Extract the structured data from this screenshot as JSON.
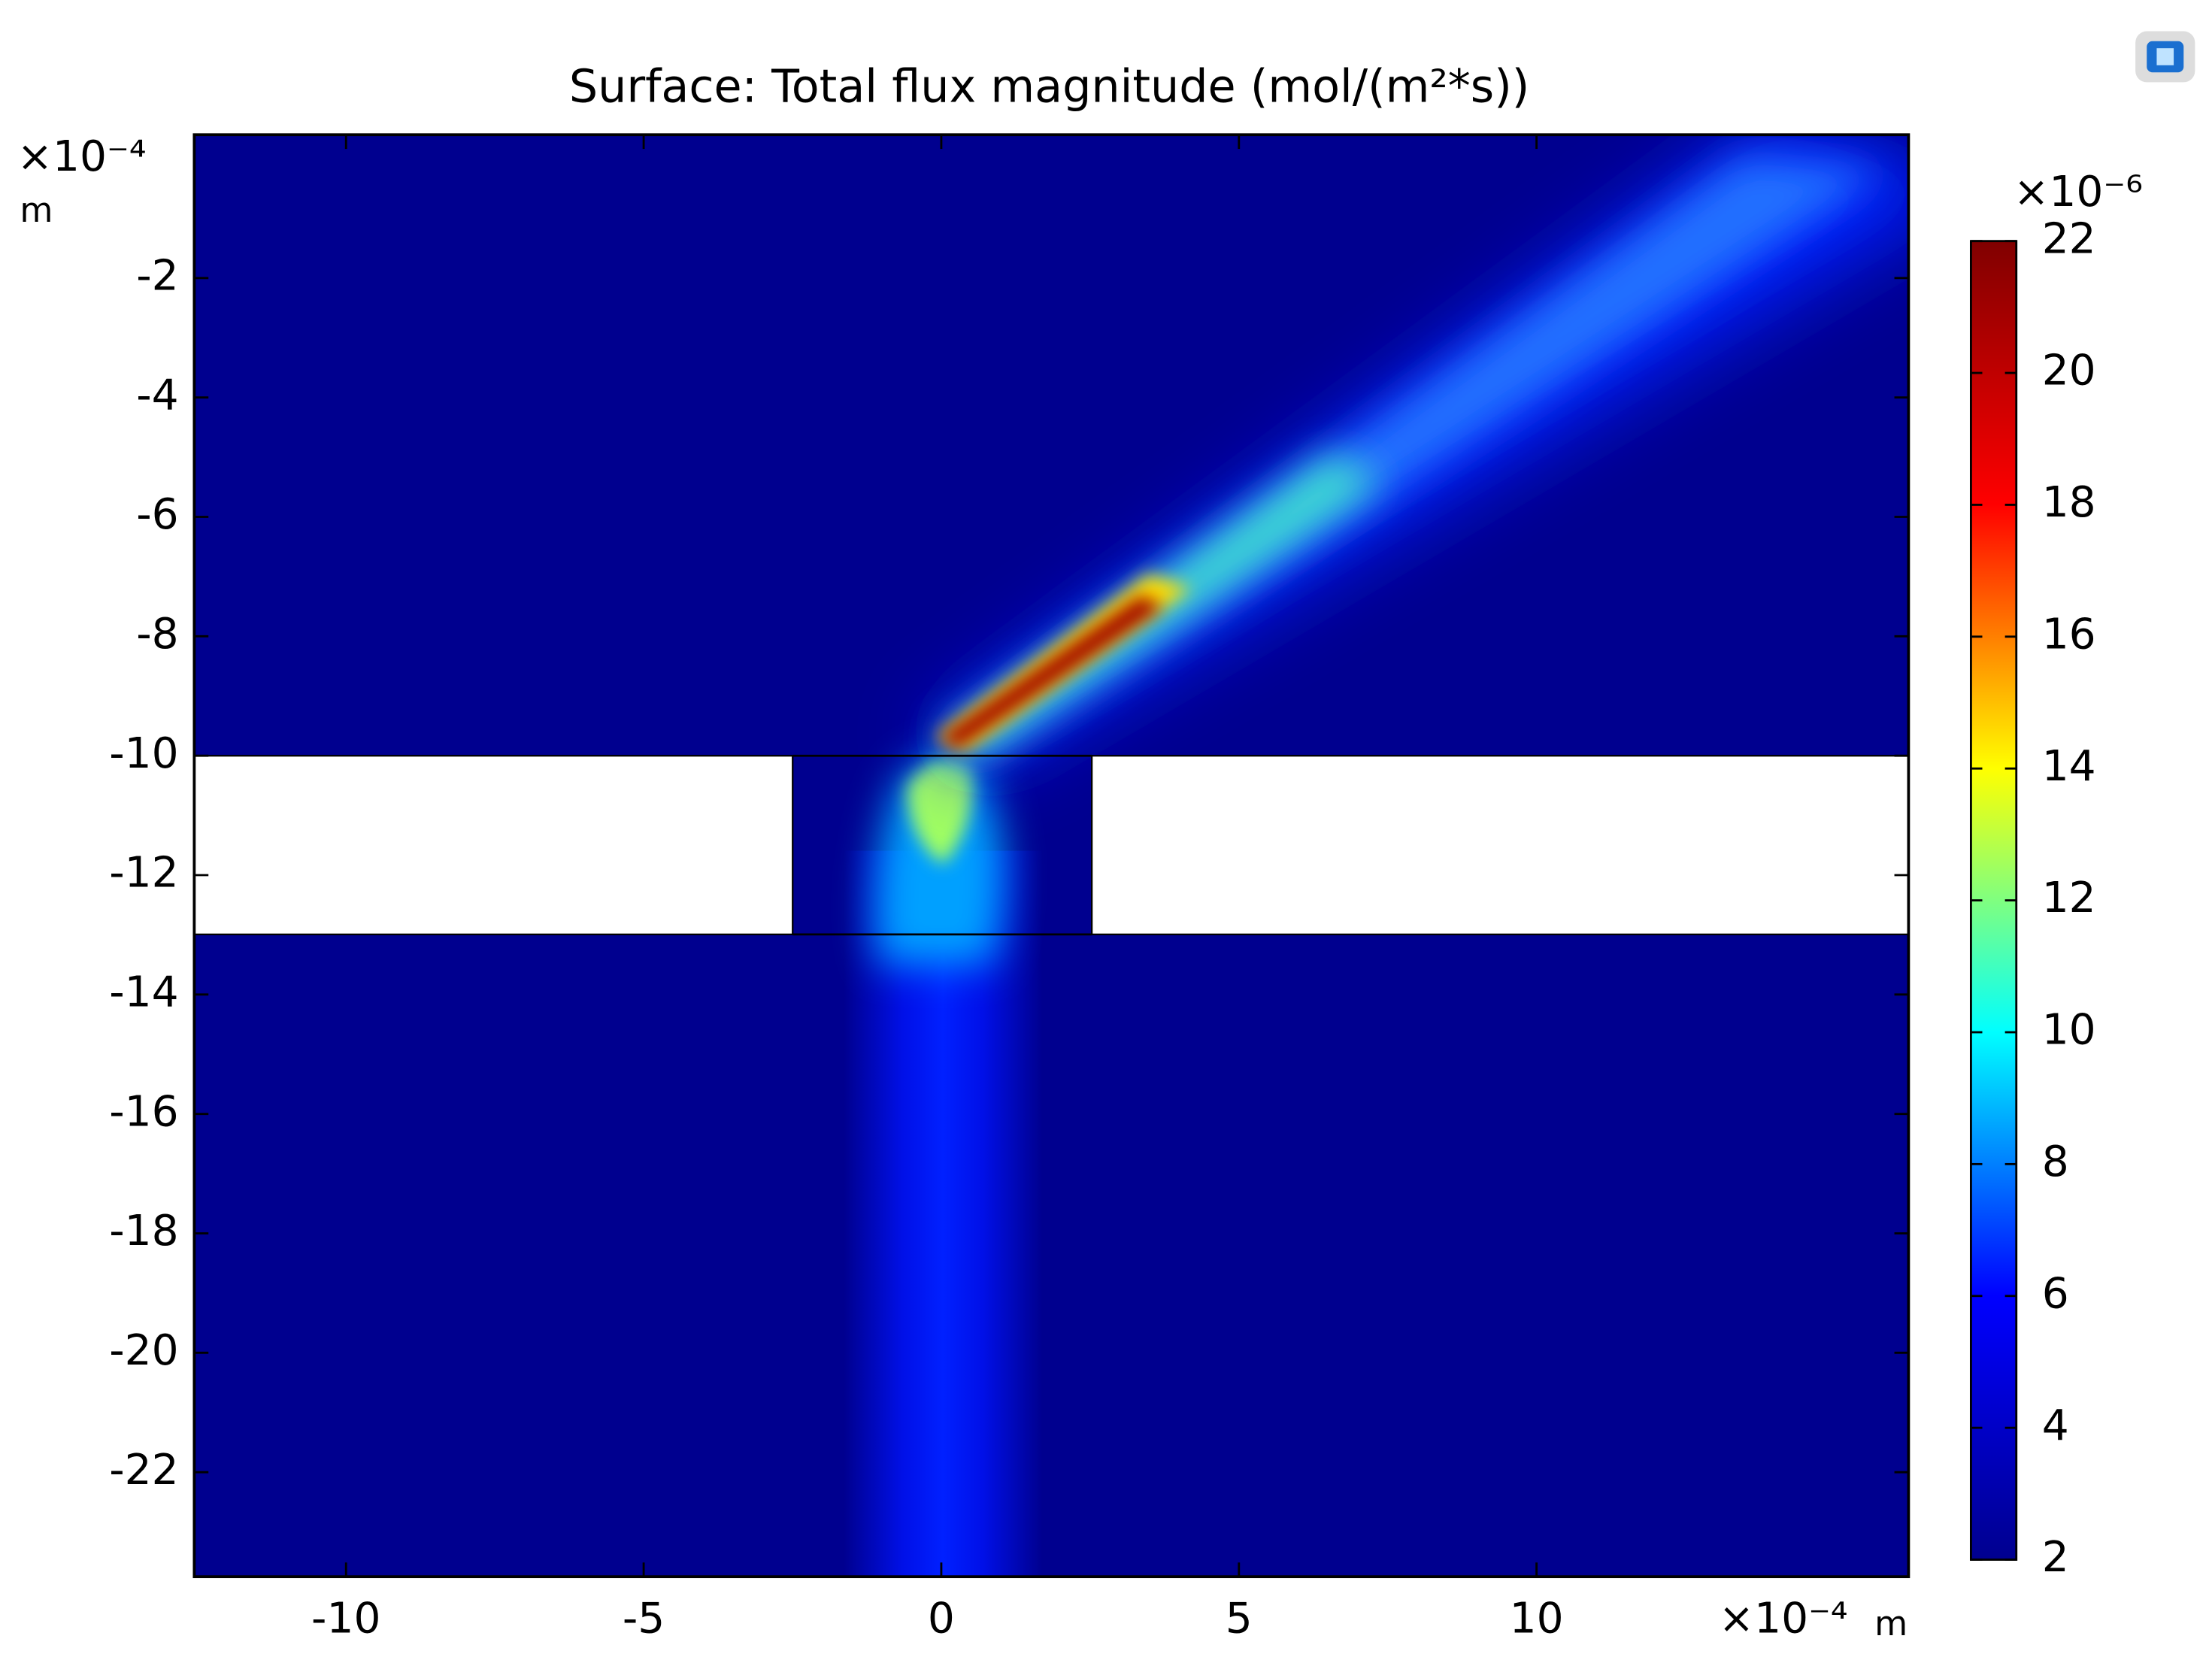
{
  "chart_data": {
    "type": "surface",
    "title": "Surface: Total flux magnitude (mol/(m²*s))",
    "x_multiplier": "×10⁻⁴",
    "x_unit": "m",
    "y_multiplier": "×10⁻⁴",
    "y_unit": "m",
    "xlim": [
      -12.55,
      16.25
    ],
    "xticks": [
      -10,
      -5,
      0,
      5,
      10
    ],
    "ylim": [
      -23.75,
      0.4
    ],
    "yticks": [
      -22,
      -20,
      -18,
      -16,
      -14,
      -12,
      -10,
      -8,
      -6,
      -4,
      -2
    ],
    "colorbar": {
      "multiplier": "×10⁻⁶",
      "lim": [
        2,
        22
      ],
      "ticks": [
        2,
        4,
        6,
        8,
        10,
        12,
        14,
        16,
        18,
        20,
        22
      ],
      "colors": [
        "#00008f",
        "#0000ff",
        "#00ffff",
        "#ffff00",
        "#ff0000",
        "#800000"
      ]
    }
  }
}
